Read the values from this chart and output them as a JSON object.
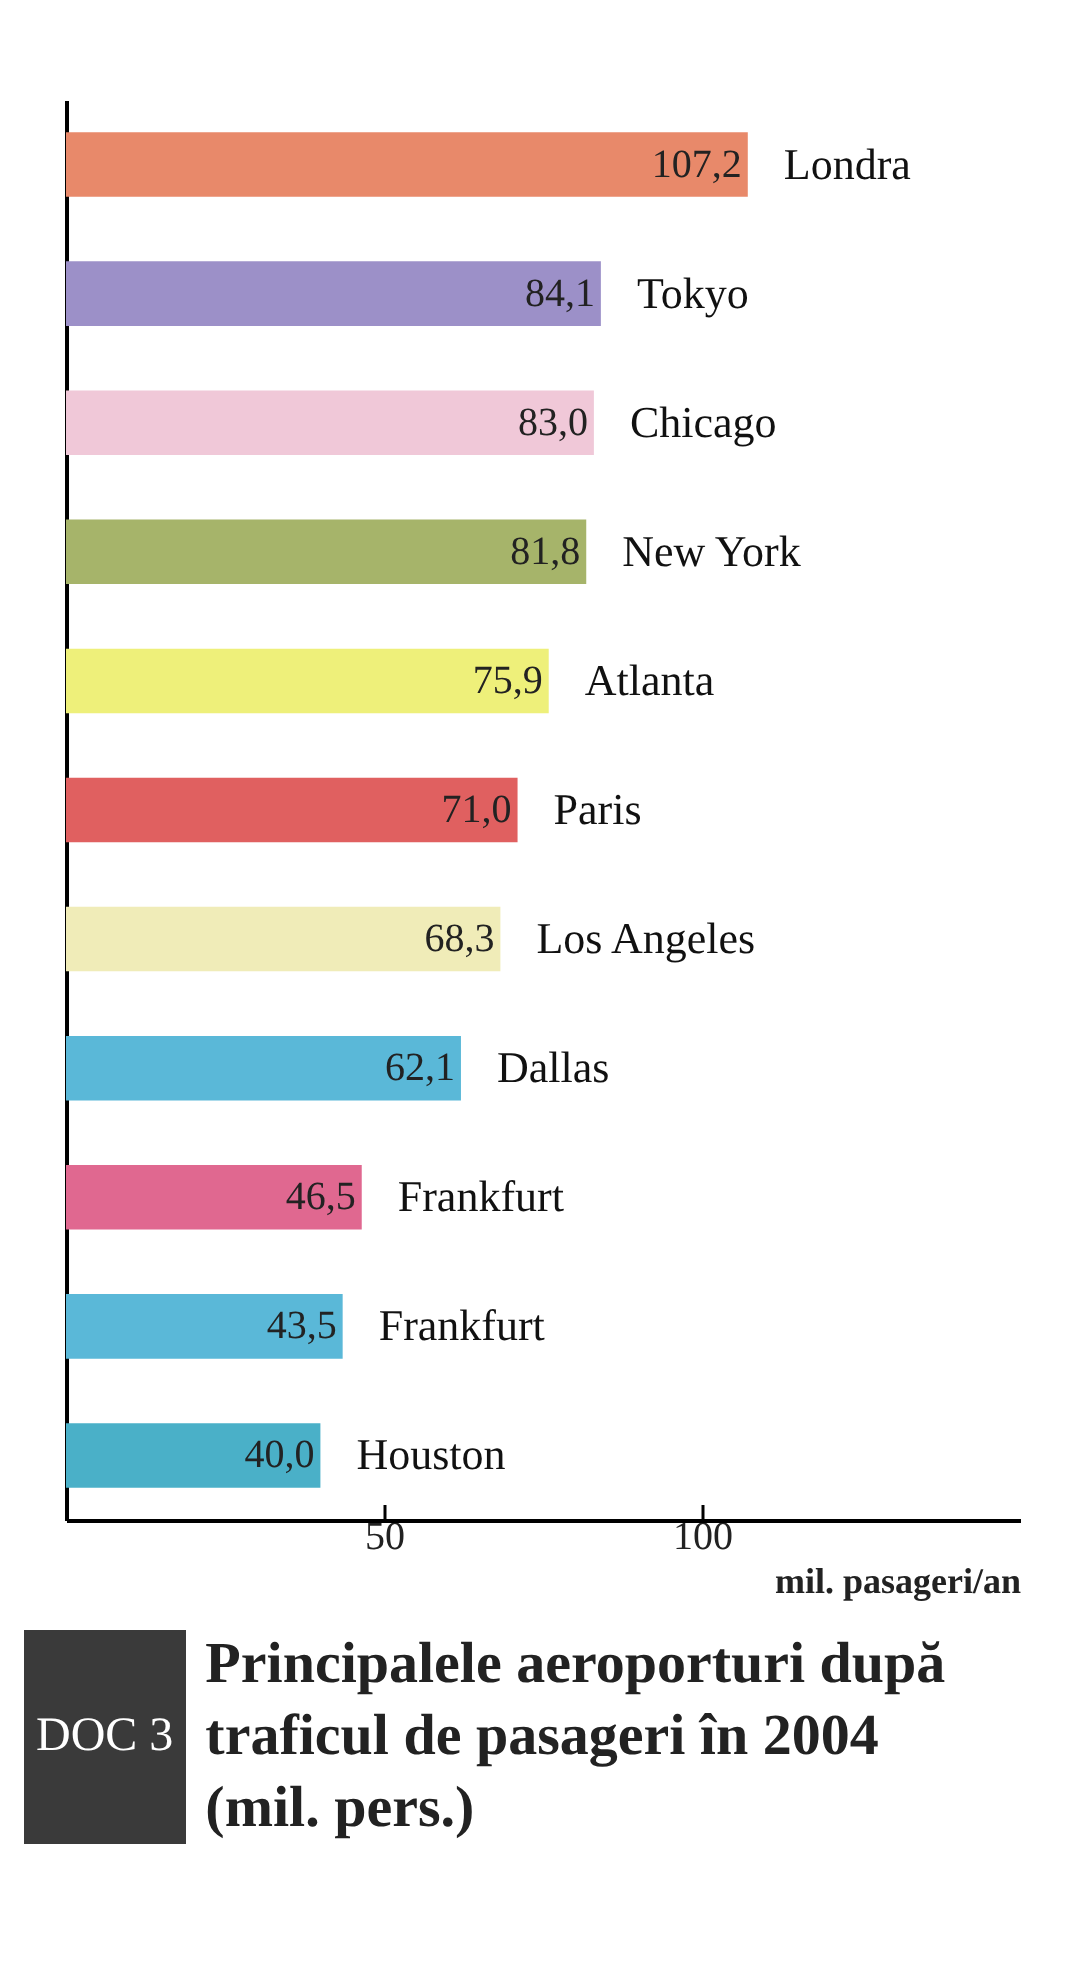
{
  "chart_data": {
    "type": "bar",
    "orientation": "horizontal",
    "title": "Principalele aeroporturi după traficul de pasageri în 2004 (mil. pers.)",
    "xlabel": "mil. pasageri/an",
    "categories": [
      "Londra",
      "Tokyo",
      "Chicago",
      "New York",
      "Atlanta",
      "Paris",
      "Los Angeles",
      "Dallas",
      "Frankfurt",
      "Frankfurt",
      "Houston"
    ],
    "values": [
      107.2,
      84.1,
      83.0,
      81.8,
      75.9,
      71.0,
      68.3,
      62.1,
      46.5,
      43.5,
      40.0
    ],
    "value_labels": [
      "107,2",
      "84,1",
      "83,0",
      "81,8",
      "75,9",
      "71,0",
      "68,3",
      "62,1",
      "46,5",
      "43,5",
      "40,0"
    ],
    "colors": [
      "#e8896a",
      "#9c90c8",
      "#f0c8d8",
      "#a6b46a",
      "#eef07a",
      "#e06060",
      "#f0ecb8",
      "#5ab8d8",
      "#e06890",
      "#5ab8d8",
      "#4ab0c8"
    ],
    "xlim": [
      0,
      150
    ],
    "xticks": [
      50,
      100
    ],
    "tick_labels": "x",
    "annotations": [
      "DOC 3"
    ]
  }
}
